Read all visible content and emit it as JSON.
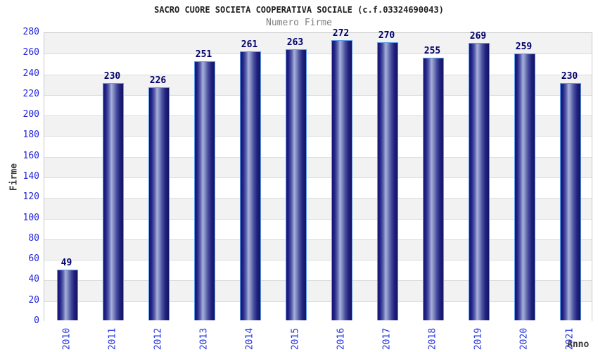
{
  "header": {
    "title": "SACRO CUORE SOCIETA COOPERATIVA SOCIALE (c.f.03324690043)",
    "subtitle": "Numero Firme"
  },
  "chart_data": {
    "type": "bar",
    "title": "SACRO CUORE SOCIETA COOPERATIVA SOCIALE (c.f.03324690043)",
    "subtitle": "Numero Firme",
    "categories": [
      "2010",
      "2011",
      "2012",
      "2013",
      "2014",
      "2015",
      "2016",
      "2017",
      "2018",
      "2019",
      "2020",
      "2021"
    ],
    "values": [
      49,
      230,
      226,
      251,
      261,
      263,
      272,
      270,
      255,
      269,
      259,
      230
    ],
    "xlabel": "Anno",
    "ylabel": "Firme",
    "ylim": [
      0,
      280
    ],
    "ytick_step": 20,
    "grid": true,
    "legend": "none",
    "band_fill": "alternating"
  },
  "colors": {
    "title": "#222222",
    "subtitle": "#7e7e7e",
    "tick_label": "#2222dd",
    "value_label": "#00006b",
    "axis_title": "#3c3c3c",
    "bar_dark": "#15156b",
    "bar_highlight": "#a8b0da",
    "bar_border": "#5b9be6",
    "band_gray": "#f2f2f2",
    "band_white": "#ffffff",
    "gridline": "#dcdcdc",
    "plot_border": "#c8c8c8"
  }
}
